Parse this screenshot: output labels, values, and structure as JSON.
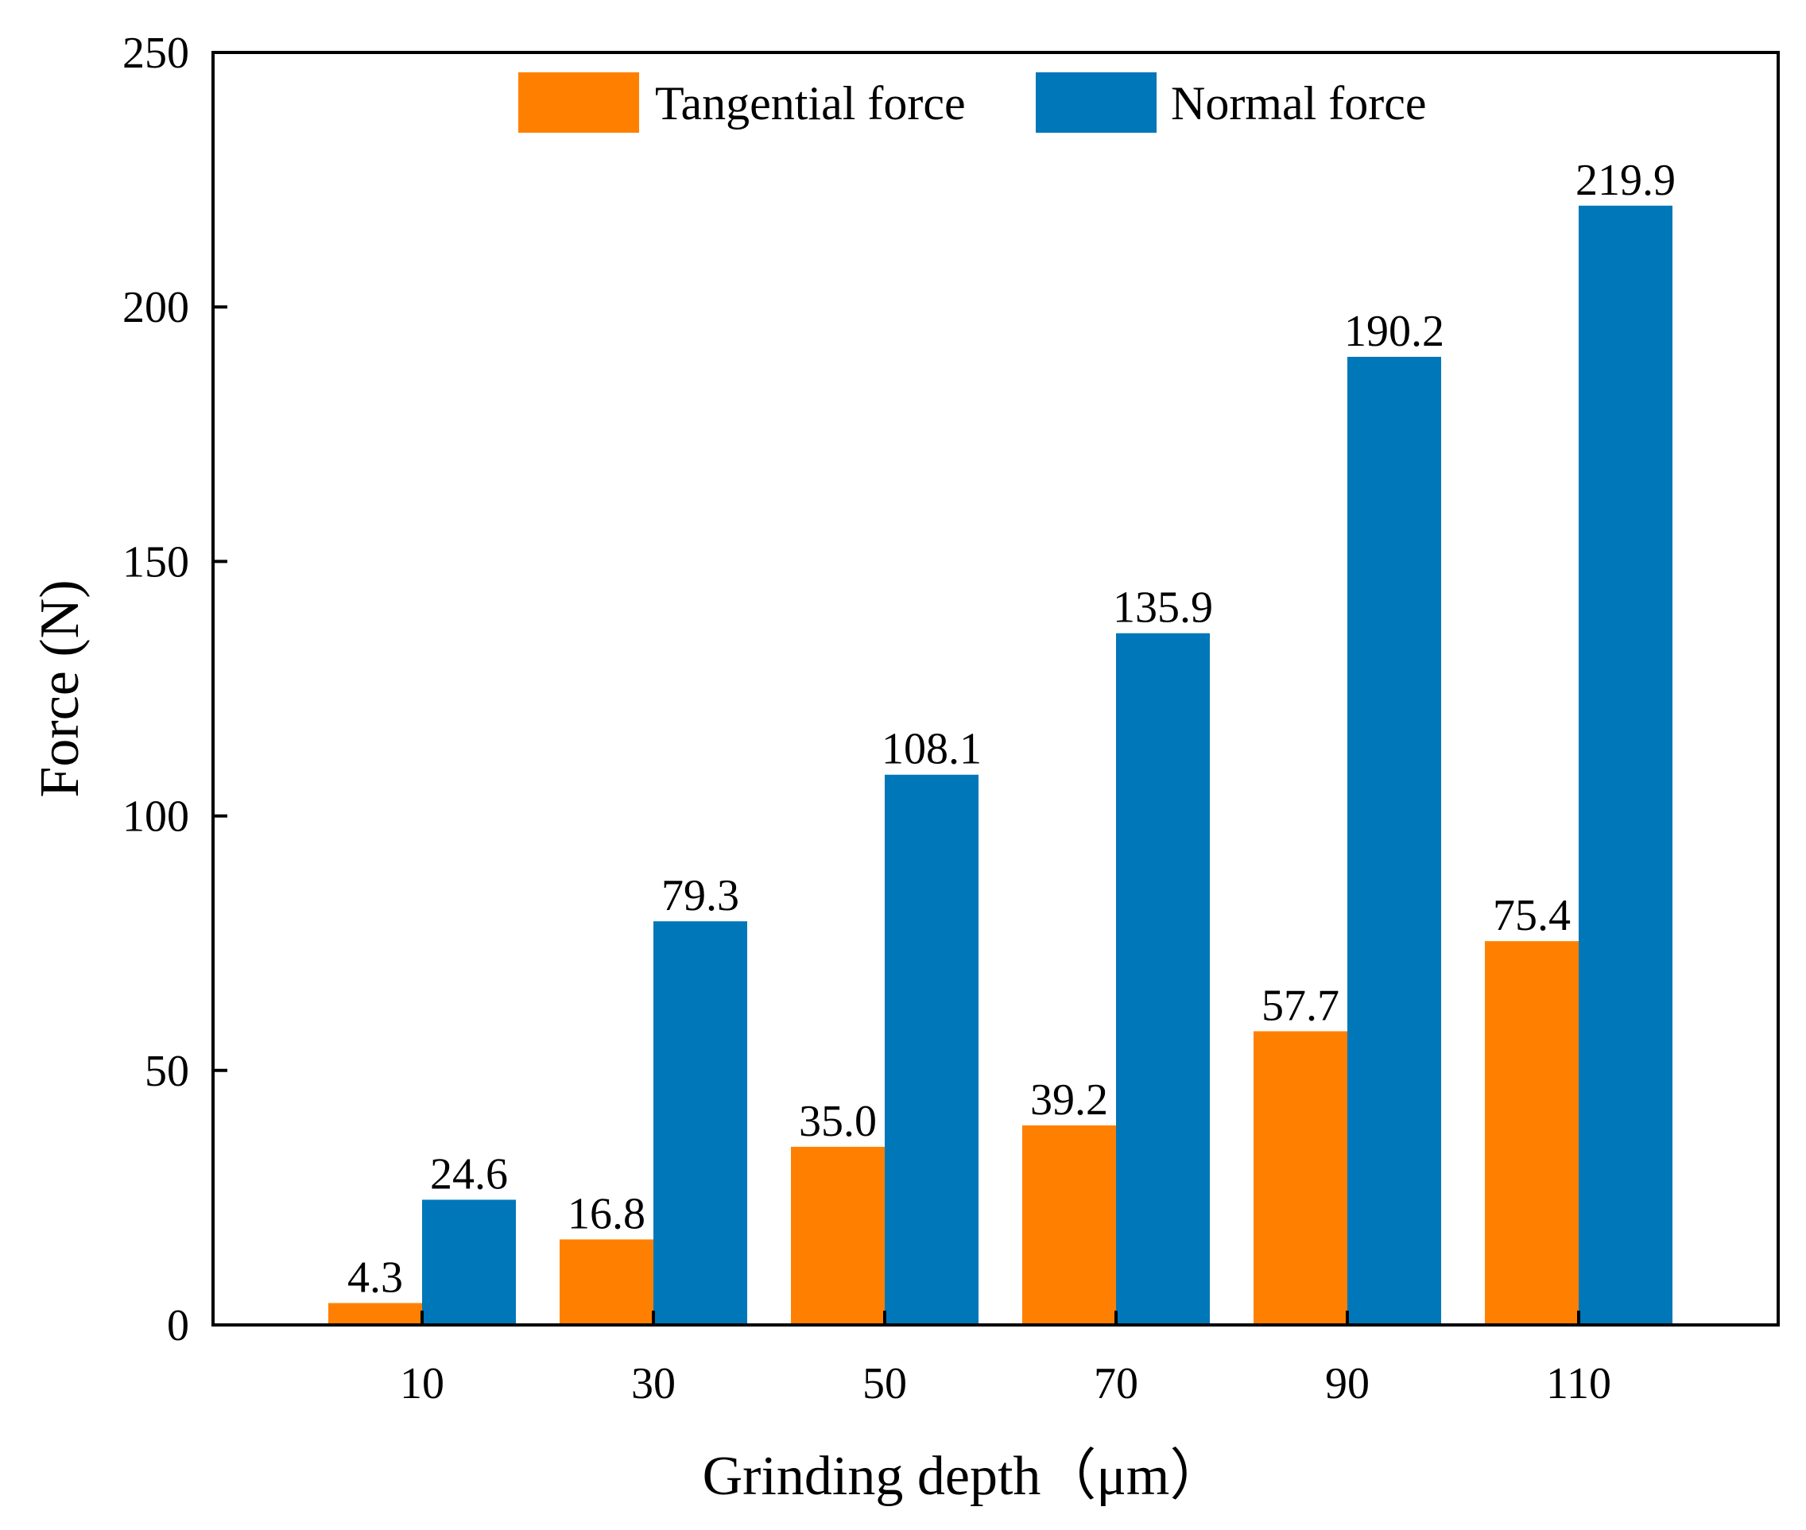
{
  "chart_data": {
    "type": "bar",
    "title": "",
    "xlabel": "Grinding depth（μm）",
    "ylabel": "Force (N)",
    "categories": [
      "10",
      "30",
      "50",
      "70",
      "90",
      "110"
    ],
    "series": [
      {
        "name": "Tangential force",
        "color": "#FF8000",
        "values": [
          4.3,
          16.8,
          35.0,
          39.2,
          57.7,
          75.4
        ],
        "labels": [
          "4.3",
          "16.8",
          "35.0",
          "39.2",
          "57.7",
          "75.4"
        ]
      },
      {
        "name": "Normal force",
        "color": "#0077B8",
        "values": [
          24.6,
          79.3,
          108.1,
          135.9,
          190.2,
          219.9
        ],
        "labels": [
          "24.6",
          "79.3",
          "108.1",
          "135.9",
          "190.2",
          "219.9"
        ]
      }
    ],
    "ylim": [
      0,
      250
    ],
    "yticks": [
      "0",
      "50",
      "100",
      "150",
      "200",
      "250"
    ],
    "grid": false,
    "legend": "top-center"
  }
}
